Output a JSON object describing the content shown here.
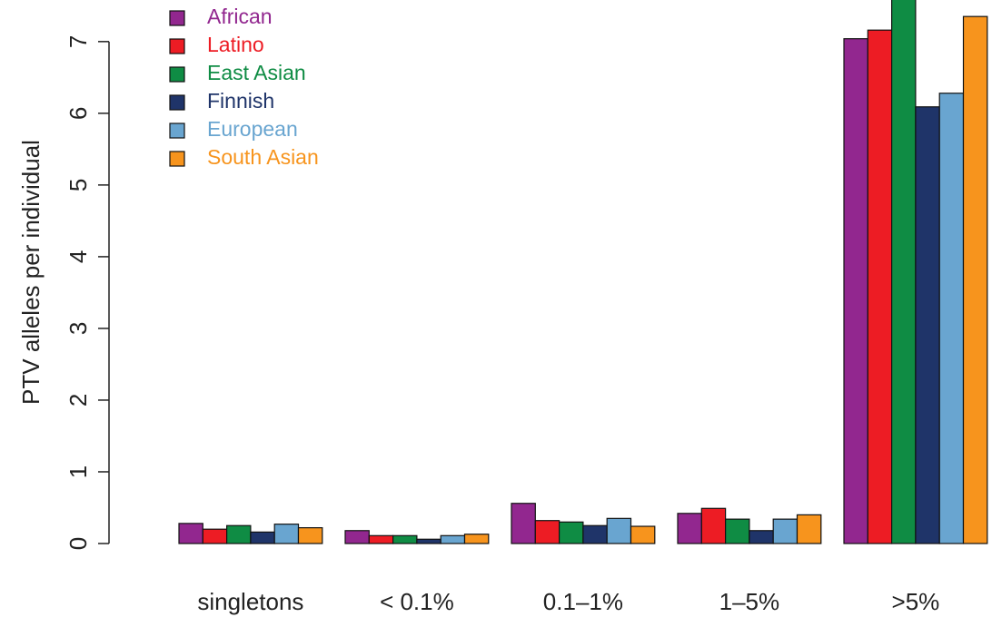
{
  "chart_data": {
    "type": "bar",
    "y_label": "PTV alleles per individual",
    "categories": [
      "singletons",
      "< 0.1%",
      "0.1–1%",
      "1–5%",
      ">5%"
    ],
    "series": [
      {
        "name": "African",
        "color": "#92278f",
        "values": [
          0.28,
          0.18,
          0.56,
          0.42,
          7.04
        ]
      },
      {
        "name": "Latino",
        "color": "#ed1c24",
        "values": [
          0.2,
          0.11,
          0.32,
          0.49,
          7.16
        ]
      },
      {
        "name": "East Asian",
        "color": "#0f8c44",
        "values": [
          0.25,
          0.11,
          0.3,
          0.34,
          7.8
        ]
      },
      {
        "name": "Finnish",
        "color": "#1f3469",
        "values": [
          0.16,
          0.06,
          0.25,
          0.18,
          6.09
        ]
      },
      {
        "name": "European",
        "color": "#69a5d0",
        "values": [
          0.27,
          0.11,
          0.35,
          0.34,
          6.28
        ]
      },
      {
        "name": "South Asian",
        "color": "#f7941d",
        "values": [
          0.22,
          0.13,
          0.24,
          0.4,
          7.35
        ]
      }
    ],
    "ylim": [
      0,
      7.58
    ],
    "yticks": [
      0,
      1,
      2,
      3,
      4,
      5,
      6,
      7
    ],
    "legend": "top-left"
  }
}
